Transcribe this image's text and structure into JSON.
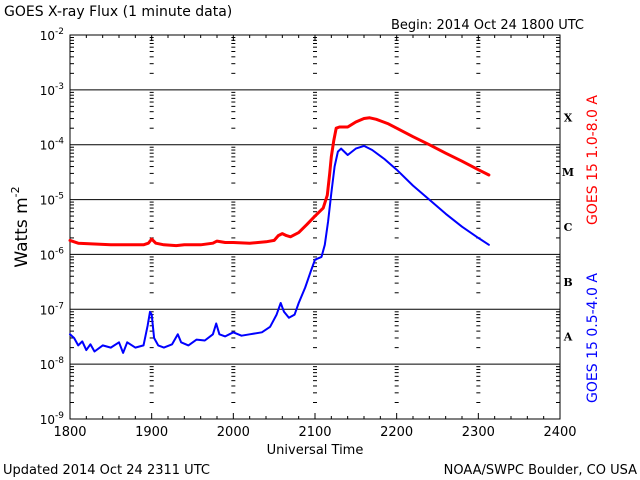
{
  "chart_data": {
    "type": "line",
    "title": "GOES X-ray Flux (1 minute data)",
    "begin": "Begin: 2014 Oct 24 1800 UTC",
    "xlabel": "Universal Time",
    "ylabel": "Watts m",
    "ylabel_sup": "-2",
    "x_range": [
      1800,
      2400
    ],
    "y_range": [
      1e-09,
      0.01
    ],
    "y_scale": "log",
    "grid": "horizontal lines at each decade",
    "x_ticks": [
      "1800",
      "1900",
      "2000",
      "2100",
      "2200",
      "2300",
      "2400"
    ],
    "y_ticks": [
      {
        "base": "10",
        "exp": "-2"
      },
      {
        "base": "10",
        "exp": "-3"
      },
      {
        "base": "10",
        "exp": "-4"
      },
      {
        "base": "10",
        "exp": "-5"
      },
      {
        "base": "10",
        "exp": "-6"
      },
      {
        "base": "10",
        "exp": "-7"
      },
      {
        "base": "10",
        "exp": "-8"
      },
      {
        "base": "10",
        "exp": "-9"
      }
    ],
    "flare_classes": [
      {
        "label": "X",
        "flux": 0.0001
      },
      {
        "label": "M",
        "flux": 1e-05
      },
      {
        "label": "C",
        "flux": 1e-06
      },
      {
        "label": "B",
        "flux": 1e-07
      },
      {
        "label": "A",
        "flux": 1e-08
      }
    ],
    "series": [
      {
        "name": "GOES 15 1.0-8.0 A",
        "color": "#ff0000",
        "points": [
          [
            1800,
            1.8e-06
          ],
          [
            1810,
            1.6e-06
          ],
          [
            1830,
            1.55e-06
          ],
          [
            1850,
            1.5e-06
          ],
          [
            1870,
            1.5e-06
          ],
          [
            1890,
            1.5e-06
          ],
          [
            1896,
            1.6e-06
          ],
          [
            1900,
            1.9e-06
          ],
          [
            1905,
            1.6e-06
          ],
          [
            1915,
            1.5e-06
          ],
          [
            1930,
            1.45e-06
          ],
          [
            1940,
            1.5e-06
          ],
          [
            1960,
            1.5e-06
          ],
          [
            1975,
            1.6e-06
          ],
          [
            1980,
            1.75e-06
          ],
          [
            1990,
            1.65e-06
          ],
          [
            2000,
            1.65e-06
          ],
          [
            2020,
            1.6e-06
          ],
          [
            2040,
            1.7e-06
          ],
          [
            2050,
            1.8e-06
          ],
          [
            2055,
            2.2e-06
          ],
          [
            2060,
            2.4e-06
          ],
          [
            2065,
            2.2e-06
          ],
          [
            2070,
            2.1e-06
          ],
          [
            2080,
            2.5e-06
          ],
          [
            2090,
            3.5e-06
          ],
          [
            2100,
            5e-06
          ],
          [
            2110,
            7e-06
          ],
          [
            2115,
            1.2e-05
          ],
          [
            2118,
            3e-05
          ],
          [
            2120,
            6e-05
          ],
          [
            2123,
            0.00012
          ],
          [
            2126,
            0.0002
          ],
          [
            2130,
            0.00021
          ],
          [
            2140,
            0.00021
          ],
          [
            2150,
            0.00026
          ],
          [
            2160,
            0.0003
          ],
          [
            2167,
            0.00031
          ],
          [
            2175,
            0.00029
          ],
          [
            2190,
            0.00024
          ],
          [
            2200,
            0.0002
          ],
          [
            2220,
            0.00014
          ],
          [
            2240,
            0.0001
          ],
          [
            2260,
            7e-05
          ],
          [
            2280,
            5e-05
          ],
          [
            2300,
            3.5e-05
          ],
          [
            2313,
            2.8e-05
          ]
        ]
      },
      {
        "name": "GOES 15 0.5-4.0 A",
        "color": "#0000ff",
        "points": [
          [
            1800,
            3.5e-08
          ],
          [
            1805,
            3e-08
          ],
          [
            1810,
            2.2e-08
          ],
          [
            1815,
            2.6e-08
          ],
          [
            1820,
            1.8e-08
          ],
          [
            1825,
            2.3e-08
          ],
          [
            1830,
            1.7e-08
          ],
          [
            1840,
            2.2e-08
          ],
          [
            1850,
            2e-08
          ],
          [
            1860,
            2.5e-08
          ],
          [
            1865,
            1.6e-08
          ],
          [
            1870,
            2.5e-08
          ],
          [
            1880,
            2e-08
          ],
          [
            1890,
            2.2e-08
          ],
          [
            1895,
            5e-08
          ],
          [
            1898,
            9e-08
          ],
          [
            1900,
            8e-08
          ],
          [
            1903,
            3e-08
          ],
          [
            1908,
            2.2e-08
          ],
          [
            1915,
            2e-08
          ],
          [
            1925,
            2.3e-08
          ],
          [
            1932,
            3.5e-08
          ],
          [
            1936,
            2.5e-08
          ],
          [
            1945,
            2.2e-08
          ],
          [
            1955,
            2.8e-08
          ],
          [
            1965,
            2.7e-08
          ],
          [
            1975,
            3.5e-08
          ],
          [
            1979,
            5.5e-08
          ],
          [
            1983,
            3.5e-08
          ],
          [
            1990,
            3.2e-08
          ],
          [
            2000,
            3.8e-08
          ],
          [
            2010,
            3.3e-08
          ],
          [
            2020,
            3.5e-08
          ],
          [
            2035,
            3.8e-08
          ],
          [
            2045,
            4.8e-08
          ],
          [
            2053,
            8e-08
          ],
          [
            2058,
            1.3e-07
          ],
          [
            2062,
            9e-08
          ],
          [
            2068,
            7e-08
          ],
          [
            2075,
            8e-08
          ],
          [
            2080,
            1.3e-07
          ],
          [
            2088,
            2.5e-07
          ],
          [
            2095,
            5e-07
          ],
          [
            2100,
            8e-07
          ],
          [
            2108,
            9e-07
          ],
          [
            2112,
            1.5e-06
          ],
          [
            2116,
            4e-06
          ],
          [
            2120,
            1.3e-05
          ],
          [
            2124,
            4e-05
          ],
          [
            2128,
            7.5e-05
          ],
          [
            2132,
            8.5e-05
          ],
          [
            2140,
            6.5e-05
          ],
          [
            2150,
            8.5e-05
          ],
          [
            2160,
            9.5e-05
          ],
          [
            2170,
            8e-05
          ],
          [
            2185,
            5.5e-05
          ],
          [
            2200,
            3.5e-05
          ],
          [
            2220,
            1.8e-05
          ],
          [
            2240,
            1e-05
          ],
          [
            2260,
            5.5e-06
          ],
          [
            2280,
            3.2e-06
          ],
          [
            2300,
            2e-06
          ],
          [
            2313,
            1.5e-06
          ]
        ]
      }
    ]
  },
  "footer": {
    "updated": "Updated 2014 Oct 24 2311 UTC",
    "source": "NOAA/SWPC Boulder, CO USA"
  }
}
